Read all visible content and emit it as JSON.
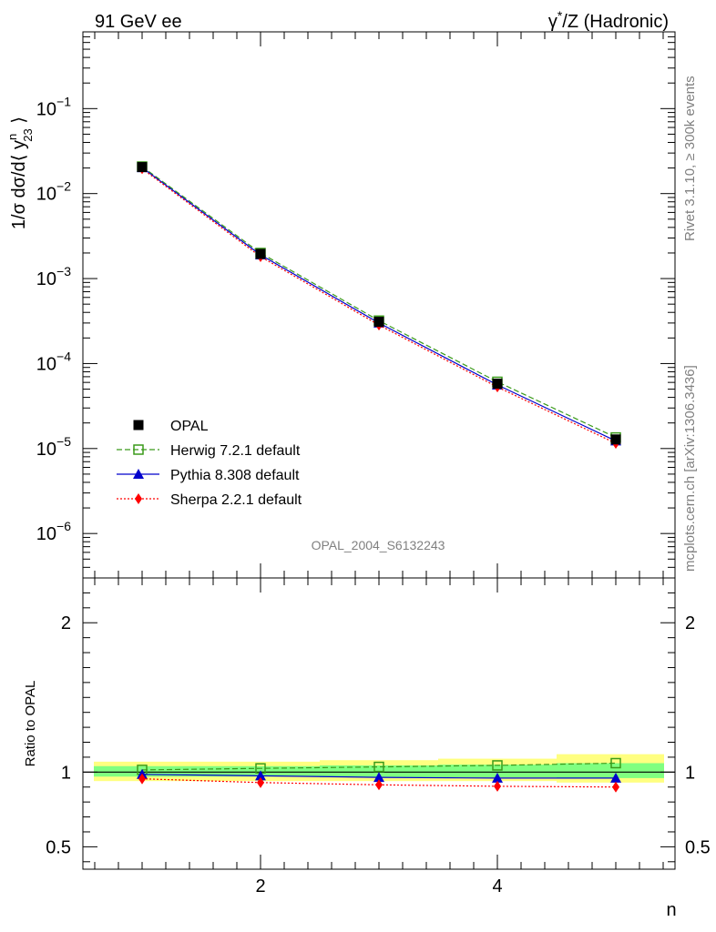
{
  "header": {
    "left": "91 GeV ee",
    "right_prefix": "γ",
    "right_sup": "*",
    "right_suffix": "/Z (Hadronic)"
  },
  "side": {
    "rivet": "Rivet 3.1.10, ≥ 300k events",
    "mcplots": "mcplots.cern.ch [arXiv:1306.3436]"
  },
  "watermark": "OPAL_2004_S6132243",
  "chart_data": [
    {
      "type": "line",
      "ylabel_parts": {
        "a": "1/σ dσ/d⟨ y",
        "sup": "n",
        "sub": "23",
        "b": " ⟩"
      },
      "xlabel": "n",
      "xlim": [
        0.5,
        5.5
      ],
      "ylim": [
        3e-07,
        0.8
      ],
      "log_y": true,
      "yticks": [
        {
          "base": "10",
          "exp": "−1",
          "v": 0.1
        },
        {
          "base": "10",
          "exp": "−2",
          "v": 0.01
        },
        {
          "base": "10",
          "exp": "−3",
          "v": 0.001
        },
        {
          "base": "10",
          "exp": "−4",
          "v": 0.0001
        },
        {
          "base": "10",
          "exp": "−5",
          "v": 1e-05
        },
        {
          "base": "10",
          "exp": "−6",
          "v": 1e-06
        }
      ],
      "x": [
        1,
        2,
        3,
        4,
        5
      ],
      "series": [
        {
          "name": "OPAL",
          "values": [
            0.0205,
            0.00195,
            0.00031,
            5.8e-05,
            1.28e-05
          ],
          "color": "#000000",
          "marker": "filled-square",
          "line": "none"
        },
        {
          "name": "Herwig 7.2.1 default",
          "values": [
            0.0208,
            0.002,
            0.00032,
            6.1e-05,
            1.35e-05
          ],
          "color": "#3a9a1a",
          "marker": "open-square",
          "line": "dashed"
        },
        {
          "name": "Pythia 8.308 default",
          "values": [
            0.0202,
            0.0019,
            0.0003,
            5.6e-05,
            1.23e-05
          ],
          "color": "#0000cc",
          "marker": "triangle",
          "line": "solid"
        },
        {
          "name": "Sherpa 2.2.1 default",
          "values": [
            0.0196,
            0.00181,
            0.000284,
            5.3e-05,
            1.15e-05
          ],
          "color": "#ff0000",
          "marker": "diamond",
          "line": "dotted"
        }
      ],
      "legend_position": "bottom-left",
      "grid": false
    },
    {
      "type": "line",
      "ylabel": "Ratio to OPAL",
      "xlabel": "n",
      "xlim": [
        0.5,
        5.5
      ],
      "ylim": [
        0.35,
        2.3
      ],
      "ytick_labels": [
        "2",
        "1",
        "0.5"
      ],
      "ytick_values": [
        2,
        1,
        0.5
      ],
      "xtick_labels": [
        "2",
        "4"
      ],
      "xtick_values": [
        2,
        4
      ],
      "reference": 1,
      "bands": [
        {
          "band": "yellow",
          "color": "#ffff80",
          "upper": [
            1.07,
            1.07,
            1.08,
            1.09,
            1.12
          ],
          "lower": [
            0.94,
            0.94,
            0.94,
            0.94,
            0.93
          ]
        },
        {
          "band": "green",
          "color": "#80ff80",
          "upper": [
            1.04,
            1.04,
            1.045,
            1.05,
            1.06
          ],
          "lower": [
            0.97,
            0.97,
            0.965,
            0.965,
            0.96
          ]
        }
      ],
      "x": [
        1,
        2,
        3,
        4,
        5
      ],
      "series": [
        {
          "name": "Herwig 7.2.1 default",
          "values": [
            1.015,
            1.025,
            1.035,
            1.045,
            1.06
          ],
          "color": "#3a9a1a",
          "marker": "open-square",
          "line": "dashed"
        },
        {
          "name": "Pythia 8.308 default",
          "values": [
            0.985,
            0.975,
            0.965,
            0.96,
            0.96
          ],
          "color": "#0000cc",
          "marker": "triangle",
          "line": "solid"
        },
        {
          "name": "Sherpa 2.2.1 default",
          "values": [
            0.955,
            0.93,
            0.915,
            0.905,
            0.9
          ],
          "color": "#ff0000",
          "marker": "diamond",
          "line": "dotted"
        }
      ]
    }
  ]
}
